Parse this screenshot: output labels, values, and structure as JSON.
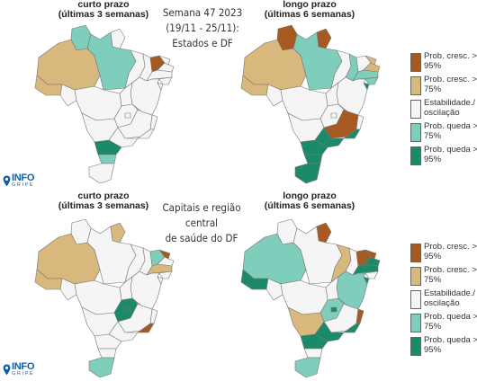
{
  "top": {
    "left_title": [
      "curto prazo",
      "(últimas 3 semanas)"
    ],
    "right_title": [
      "longo prazo",
      "(últimas 6 semanas)"
    ],
    "center_title": [
      "Semana 47 2023",
      "(19/11 - 25/11):",
      "Estados e DF"
    ]
  },
  "bottom": {
    "left_title": [
      "curto prazo",
      "(últimas 3 semanas)"
    ],
    "right_title": [
      "longo prazo",
      "(últimas 6 semanas)"
    ],
    "center_title": [
      "Capitais e região central",
      "de saúde do DF"
    ]
  },
  "legend": [
    {
      "label": "Prob. cresc. > 95%",
      "color": "#a65a21"
    },
    {
      "label": "Prob. cresc. > 75%",
      "color": "#d8b87c"
    },
    {
      "label": "Estabilidade./ oscilação",
      "color": "#f5f5f5"
    },
    {
      "label": "Prob. queda > 75%",
      "color": "#7fcdbb"
    },
    {
      "label": "Prob. queda > 95%",
      "color": "#1b8a6b"
    }
  ],
  "logo": {
    "main": "INFO",
    "sub": "GRIPE",
    "icon": "location-pin-icon"
  },
  "maps": {
    "states_short": {
      "AM": "cresc75",
      "AC": "cresc75",
      "RR": "queda75",
      "PA": "queda75",
      "AP": "estavel",
      "TO": "estavel",
      "MA": "estavel",
      "PI": "estavel",
      "CE": "cresc95",
      "RN": "estavel",
      "PB": "estavel",
      "PE": "estavel",
      "AL": "estavel",
      "SE": "estavel",
      "BA": "estavel",
      "RO": "estavel",
      "MT": "estavel",
      "GO": "estavel",
      "DF": "estavel",
      "MS": "estavel",
      "MG": "estavel",
      "ES": "estavel",
      "RJ": "estavel",
      "SP": "estavel",
      "PR": "queda95",
      "SC": "queda75",
      "RS": "estavel"
    },
    "states_long": {
      "AM": "cresc75",
      "AC": "cresc75",
      "RR": "cresc95",
      "PA": "queda75",
      "AP": "cresc95",
      "TO": "estavel",
      "MA": "estavel",
      "PI": "queda75",
      "CE": "estavel",
      "RN": "cresc75",
      "PB": "cresc75",
      "PE": "queda75",
      "AL": "queda75",
      "SE": "queda95",
      "BA": "estavel",
      "RO": "estavel",
      "MT": "estavel",
      "GO": "estavel",
      "DF": "estavel",
      "MS": "estavel",
      "MG": "cresc95",
      "ES": "estavel",
      "RJ": "queda95",
      "SP": "queda95",
      "PR": "queda95",
      "SC": "queda95",
      "RS": "queda95"
    },
    "capitals_short": {
      "AM": "cresc75",
      "AC": "cresc75",
      "RR": "estavel",
      "PA": "estavel",
      "AP": "cresc75",
      "TO": "estavel",
      "MA": "estavel",
      "PI": "estavel",
      "CE": "queda75",
      "RN": "cresc95",
      "PB": "estavel",
      "PE": "cresc75",
      "AL": "estavel",
      "SE": "estavel",
      "BA": "estavel",
      "RO": "estavel",
      "MT": "estavel",
      "GO": "queda95",
      "DF": "queda95",
      "MS": "estavel",
      "MG": "estavel",
      "ES": "estavel",
      "RJ": "cresc95",
      "SP": "estavel",
      "PR": "estavel",
      "SC": "estavel",
      "RS": "queda75"
    },
    "capitals_long": {
      "AM": "queda75",
      "AC": "queda95",
      "RR": "estavel",
      "PA": "estavel",
      "AP": "cresc95",
      "TO": "estavel",
      "MA": "cresc75",
      "PI": "estavel",
      "CE": "cresc95",
      "RN": "cresc95",
      "PB": "queda95",
      "PE": "queda95",
      "AL": "estavel",
      "SE": "queda95",
      "BA": "queda75",
      "RO": "estavel",
      "MT": "estavel",
      "GO": "queda75",
      "DF": "queda95",
      "MS": "cresc75",
      "MG": "estavel",
      "ES": "cresc95",
      "RJ": "queda95",
      "SP": "queda95",
      "PR": "queda95",
      "SC": "estavel",
      "RS": "queda75"
    }
  }
}
